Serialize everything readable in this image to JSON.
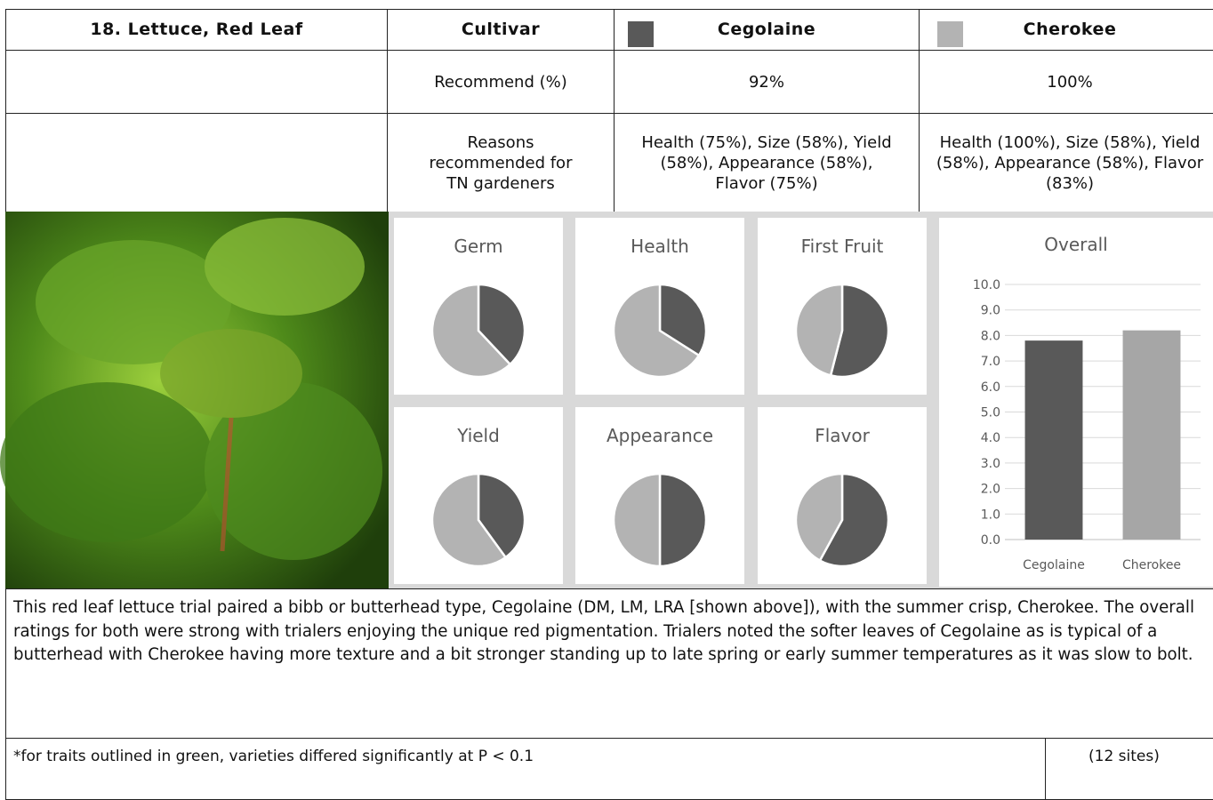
{
  "table": {
    "header": [
      "18. Lettuce, Red Leaf",
      "Cultivar",
      "Cegolaine",
      "Cherokee"
    ],
    "legend_colors": [
      "#595959",
      "#b3b3b3"
    ],
    "rows": [
      {
        "label": "Recommend (%)",
        "values": [
          "92%",
          "100%"
        ]
      },
      {
        "label": "Reasons recommended for TN gardeners",
        "values": [
          "Health (75%), Size (58%), Yield (58%), Appearance (58%), Flavor (75%)",
          "Health (100%), Size (58%), Yield (58%), Appearance (58%), Flavor (83%)"
        ]
      }
    ]
  },
  "chart_data": [
    {
      "type": "pie",
      "title": "Germ",
      "values": [
        38,
        62
      ],
      "colors": [
        "#595959",
        "#b3b3b3"
      ]
    },
    {
      "type": "pie",
      "title": "Health",
      "values": [
        34,
        66
      ],
      "colors": [
        "#595959",
        "#b3b3b3"
      ]
    },
    {
      "type": "pie",
      "title": "First Fruit",
      "values": [
        54,
        46
      ],
      "colors": [
        "#595959",
        "#b3b3b3"
      ]
    },
    {
      "type": "pie",
      "title": "Yield",
      "values": [
        40,
        60
      ],
      "colors": [
        "#595959",
        "#b3b3b3"
      ]
    },
    {
      "type": "pie",
      "title": "Appearance",
      "values": [
        50,
        50
      ],
      "colors": [
        "#595959",
        "#b3b3b3"
      ]
    },
    {
      "type": "pie",
      "title": "Flavor",
      "values": [
        58,
        42
      ],
      "colors": [
        "#595959",
        "#b3b3b3"
      ]
    },
    {
      "type": "bar",
      "title": "Overall",
      "categories": [
        "Cegolaine",
        "Cherokee"
      ],
      "values": [
        7.8,
        8.2
      ],
      "colors": [
        "#595959",
        "#a6a6a6"
      ],
      "ylim": [
        0,
        10
      ],
      "grid": true,
      "yticks": [
        {
          "value": 0,
          "label": "0.0"
        },
        {
          "value": 1,
          "label": "1.0"
        },
        {
          "value": 2,
          "label": "2.0"
        },
        {
          "value": 3,
          "label": "3.0"
        },
        {
          "value": 4,
          "label": "4.0"
        },
        {
          "value": 5,
          "label": "5.0"
        },
        {
          "value": 6,
          "label": "6.0"
        },
        {
          "value": 7,
          "label": "7.0"
        },
        {
          "value": 8,
          "label": "8.0"
        },
        {
          "value": 9,
          "label": "9.0"
        },
        {
          "value": 10,
          "label": "10.0"
        }
      ]
    }
  ],
  "paragraph": "This red leaf lettuce trial paired a bibb or butterhead type, Cegolaine (DM, LM, LRA [shown above]), with the summer crisp, Cherokee. The overall ratings for both were strong with trialers enjoying the unique red pigmentation. Trialers noted the softer leaves of Cegolaine as is typical of a butterhead with Cherokee having more texture and a bit stronger standing up to late spring or early summer temperatures as it was slow to bolt.",
  "footnote": {
    "text": "*for traits outlined in green, varieties differed significantly at P < 0.1",
    "sites": "(12 sites)"
  }
}
